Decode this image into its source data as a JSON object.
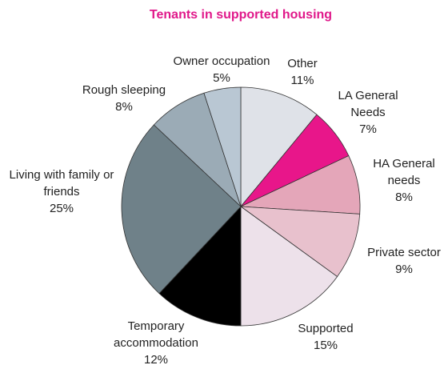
{
  "chart_data": {
    "type": "pie",
    "title": "Tenants in supported housing",
    "categories": [
      "Other",
      "LA General Needs",
      "HA General needs",
      "Private sector",
      "Supported",
      "Temporary accommodation",
      "Living with family or friends",
      "Rough sleeping",
      "Owner occupation"
    ],
    "values": [
      11,
      7,
      8,
      9,
      15,
      12,
      25,
      8,
      5
    ],
    "value_labels": [
      "11%",
      "7%",
      "8%",
      "9%",
      "15%",
      "12%",
      "25%",
      "8%",
      "5%"
    ],
    "colors": [
      "#dfe2e8",
      "#e8168a",
      "#e4a6b9",
      "#e8c1cd",
      "#ede1ea",
      "#000000",
      "#6f8189",
      "#9babb6",
      "#b9c7d3"
    ]
  }
}
